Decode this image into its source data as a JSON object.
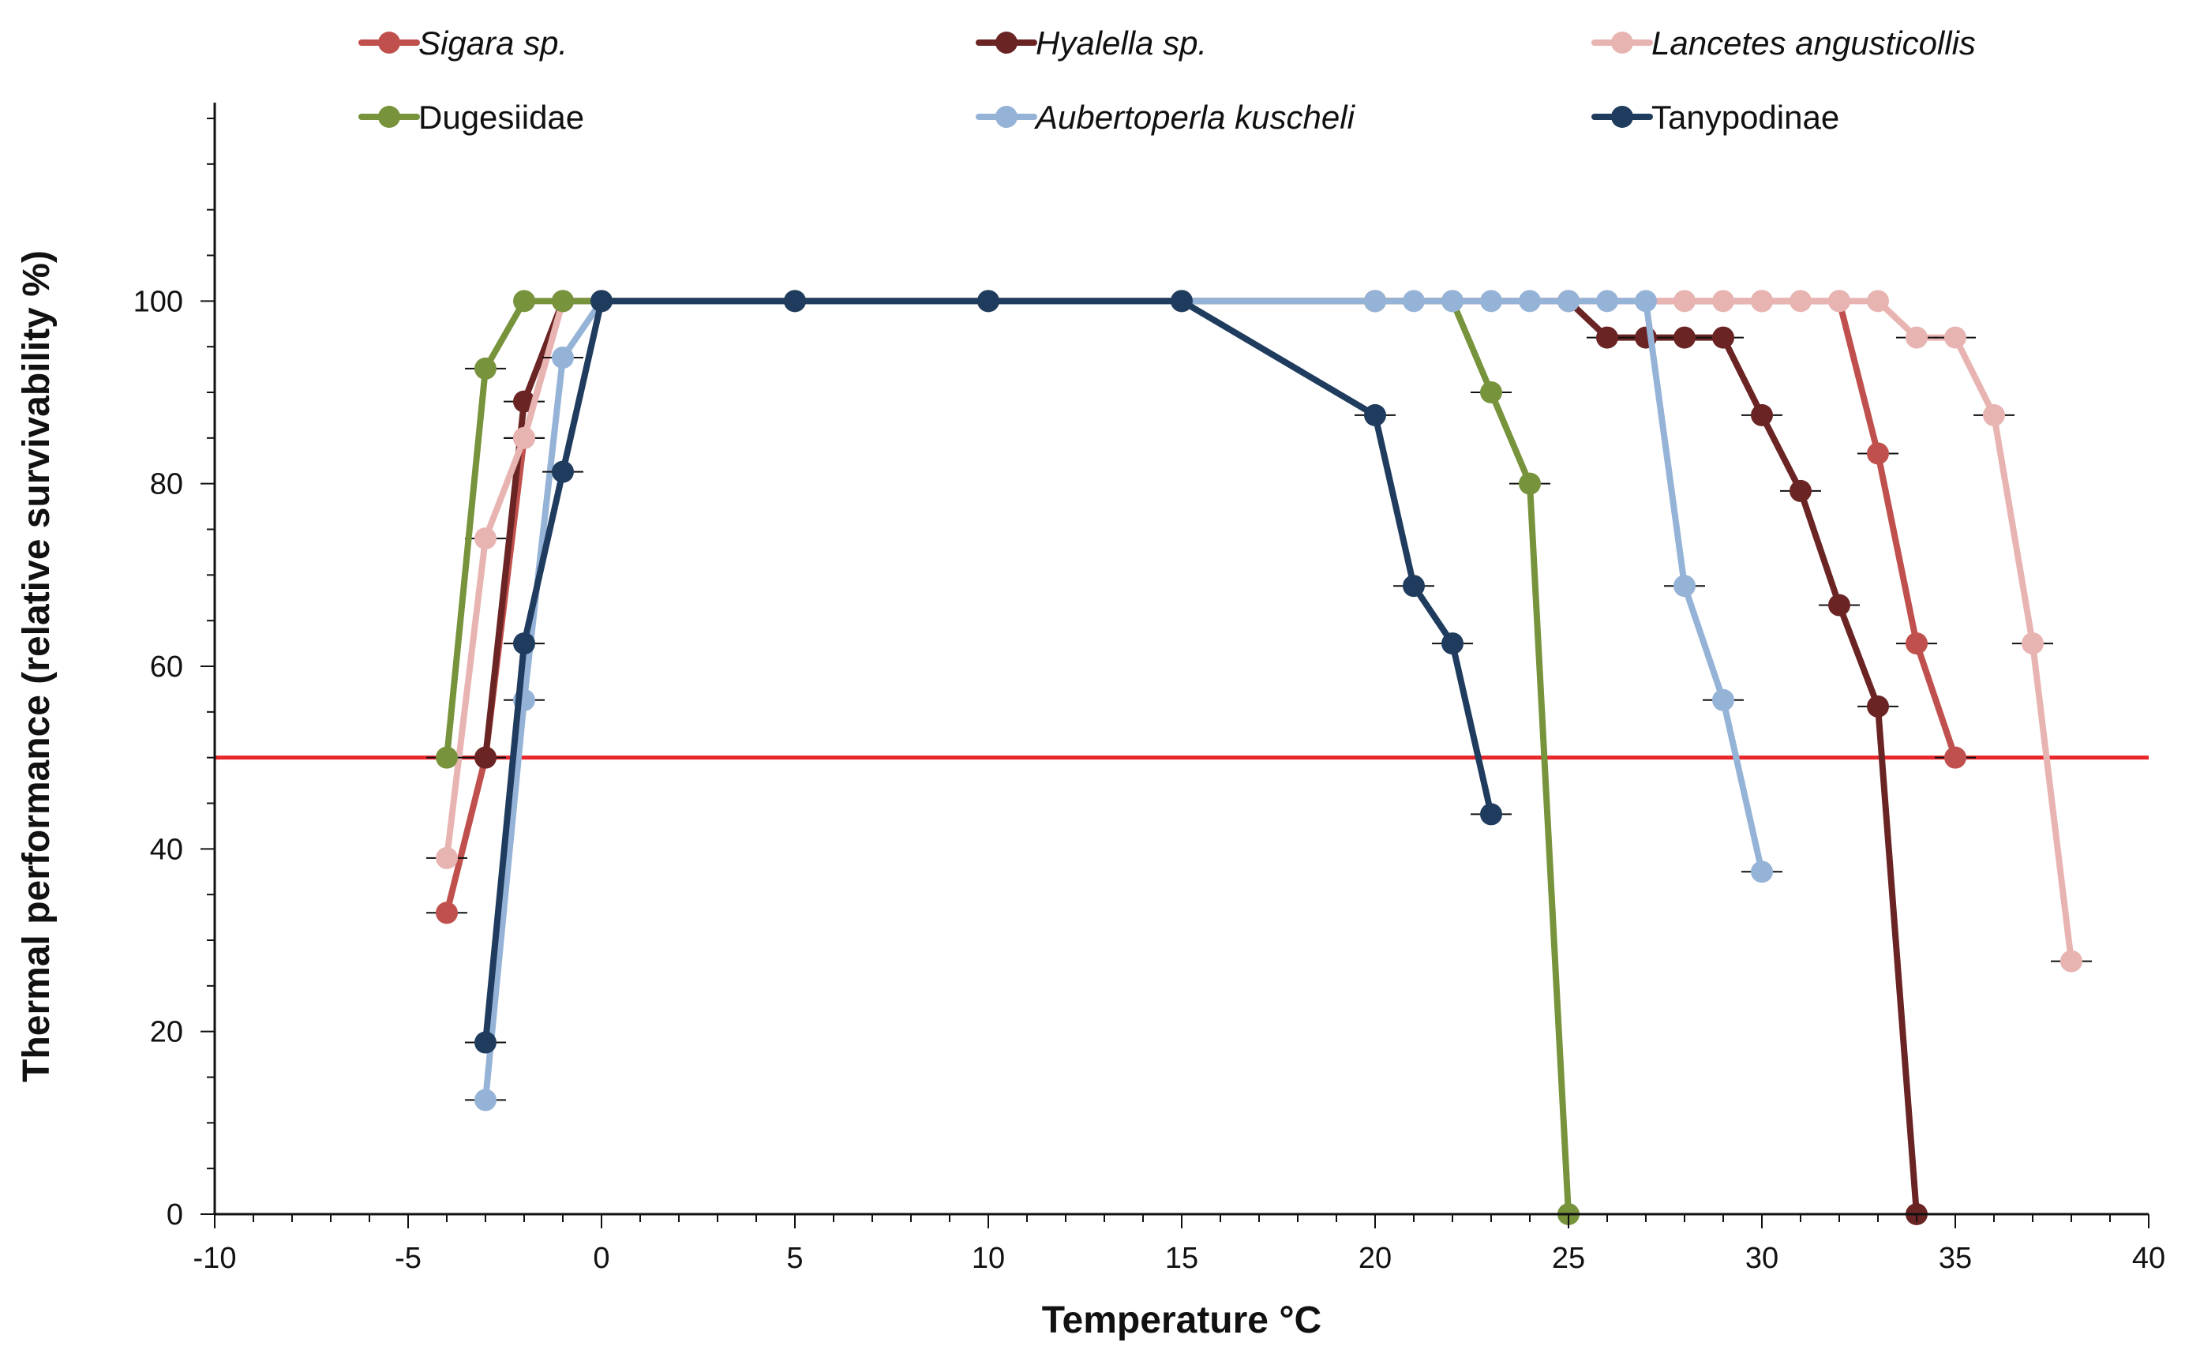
{
  "chart_data": {
    "type": "line",
    "title": "",
    "xlabel": "Temperature °C",
    "ylabel": "Thermal performance (relative survivability %)",
    "xlim": [
      -10,
      40
    ],
    "ylim": [
      0,
      120
    ],
    "xticks": [
      -10,
      -5,
      0,
      5,
      10,
      15,
      20,
      25,
      30,
      35,
      40
    ],
    "yticks": [
      0,
      20,
      40,
      60,
      80,
      100
    ],
    "legend_position": "top",
    "reference_line": {
      "y": 50,
      "color": "#e8252a"
    },
    "series": [
      {
        "name": "Sigara sp.",
        "italic": true,
        "color": "#c0504d",
        "x": [
          -4,
          -3,
          -2,
          -1,
          0,
          5,
          10,
          15,
          20,
          25,
          30,
          32,
          33,
          34,
          35
        ],
        "y": [
          33,
          50,
          85,
          100,
          100,
          100,
          100,
          100,
          100,
          100,
          100,
          100,
          83.3,
          62.5,
          50
        ]
      },
      {
        "name": "Hyalella sp.",
        "italic": true,
        "color": "#6b2424",
        "x": [
          -3,
          -2,
          -1,
          0,
          5,
          10,
          15,
          20,
          25,
          26,
          27,
          28,
          29,
          30,
          31,
          32,
          33,
          34
        ],
        "y": [
          50,
          89,
          100,
          100,
          100,
          100,
          100,
          100,
          100,
          96,
          96,
          96,
          96,
          87.5,
          79.2,
          66.7,
          55.6,
          0
        ]
      },
      {
        "name": "Lancetes angusticollis",
        "italic": true,
        "color": "#e8b4b2",
        "x": [
          -4,
          -3,
          -2,
          -1,
          0,
          5,
          10,
          15,
          20,
          25,
          28,
          29,
          30,
          31,
          32,
          33,
          34,
          35,
          36,
          37,
          38
        ],
        "y": [
          39,
          74,
          85,
          100,
          100,
          100,
          100,
          100,
          100,
          100,
          100,
          100,
          100,
          100,
          100,
          100,
          96,
          96,
          87.5,
          62.5,
          27.7
        ]
      },
      {
        "name": "Dugesiidae",
        "italic": false,
        "color": "#77933c",
        "x": [
          -4,
          -3,
          -2,
          -1,
          0,
          5,
          10,
          15,
          20,
          22,
          23,
          24,
          25
        ],
        "y": [
          50,
          92.6,
          100,
          100,
          100,
          100,
          100,
          100,
          100,
          100,
          90,
          80,
          0
        ]
      },
      {
        "name": "Aubertoperla kuscheli",
        "italic": true,
        "color": "#95b3d7",
        "x": [
          -3,
          -2,
          -1,
          0,
          5,
          10,
          15,
          20,
          21,
          22,
          23,
          24,
          25,
          26,
          27,
          28,
          29,
          30
        ],
        "y": [
          12.5,
          56.3,
          93.8,
          100,
          100,
          100,
          100,
          100,
          100,
          100,
          100,
          100,
          100,
          100,
          100,
          68.8,
          56.3,
          37.5
        ]
      },
      {
        "name": "Tanypodinae",
        "italic": false,
        "color": "#1f3c5e",
        "x": [
          -3,
          -2,
          -1,
          0,
          5,
          10,
          15,
          20,
          21,
          22,
          23
        ],
        "y": [
          18.8,
          62.5,
          81.3,
          100,
          100,
          100,
          100,
          87.5,
          68.8,
          62.5,
          43.8
        ]
      }
    ]
  }
}
